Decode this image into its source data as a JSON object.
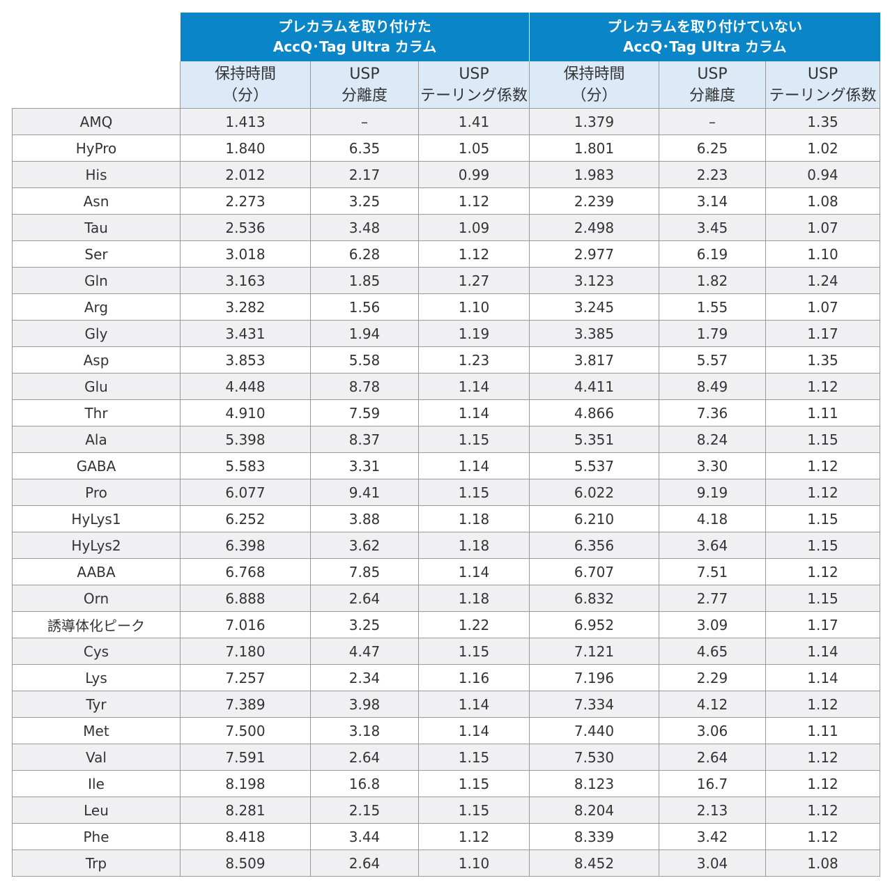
{
  "groups": [
    "プレカラムを取り付けた\nAccQ･Tag Ultra カラム",
    "プレカラムを取り付けていない\nAccQ･Tag Ultra カラム"
  ],
  "subheaders": [
    "保持時間\n（分）",
    "USP\n分離度",
    "USP\nテーリング係数"
  ],
  "rows": [
    [
      "AMQ",
      "1.413",
      "–",
      "1.41",
      "1.379",
      "–",
      "1.35"
    ],
    [
      "HyPro",
      "1.840",
      "6.35",
      "1.05",
      "1.801",
      "6.25",
      "1.02"
    ],
    [
      "His",
      "2.012",
      "2.17",
      "0.99",
      "1.983",
      "2.23",
      "0.94"
    ],
    [
      "Asn",
      "2.273",
      "3.25",
      "1.12",
      "2.239",
      "3.14",
      "1.08"
    ],
    [
      "Tau",
      "2.536",
      "3.48",
      "1.09",
      "2.498",
      "3.45",
      "1.07"
    ],
    [
      "Ser",
      "3.018",
      "6.28",
      "1.12",
      "2.977",
      "6.19",
      "1.10"
    ],
    [
      "Gln",
      "3.163",
      "1.85",
      "1.27",
      "3.123",
      "1.82",
      "1.24"
    ],
    [
      "Arg",
      "3.282",
      "1.56",
      "1.10",
      "3.245",
      "1.55",
      "1.07"
    ],
    [
      "Gly",
      "3.431",
      "1.94",
      "1.19",
      "3.385",
      "1.79",
      "1.17"
    ],
    [
      "Asp",
      "3.853",
      "5.58",
      "1.23",
      "3.817",
      "5.57",
      "1.35"
    ],
    [
      "Glu",
      "4.448",
      "8.78",
      "1.14",
      "4.411",
      "8.49",
      "1.12"
    ],
    [
      "Thr",
      "4.910",
      "7.59",
      "1.14",
      "4.866",
      "7.36",
      "1.11"
    ],
    [
      "Ala",
      "5.398",
      "8.37",
      "1.15",
      "5.351",
      "8.24",
      "1.15"
    ],
    [
      "GABA",
      "5.583",
      "3.31",
      "1.14",
      "5.537",
      "3.30",
      "1.12"
    ],
    [
      "Pro",
      "6.077",
      "9.41",
      "1.15",
      "6.022",
      "9.19",
      "1.12"
    ],
    [
      "HyLys1",
      "6.252",
      "3.88",
      "1.18",
      "6.210",
      "4.18",
      "1.15"
    ],
    [
      "HyLys2",
      "6.398",
      "3.62",
      "1.18",
      "6.356",
      "3.64",
      "1.15"
    ],
    [
      "AABA",
      "6.768",
      "7.85",
      "1.14",
      "6.707",
      "7.51",
      "1.12"
    ],
    [
      "Orn",
      "6.888",
      "2.64",
      "1.18",
      "6.832",
      "2.77",
      "1.15"
    ],
    [
      "誘導体化ピーク",
      "7.016",
      "3.25",
      "1.22",
      "6.952",
      "3.09",
      "1.17"
    ],
    [
      "Cys",
      "7.180",
      "4.47",
      "1.15",
      "7.121",
      "4.65",
      "1.14"
    ],
    [
      "Lys",
      "7.257",
      "2.34",
      "1.16",
      "7.196",
      "2.29",
      "1.14"
    ],
    [
      "Tyr",
      "7.389",
      "3.98",
      "1.14",
      "7.334",
      "4.12",
      "1.12"
    ],
    [
      "Met",
      "7.500",
      "3.18",
      "1.14",
      "7.440",
      "3.06",
      "1.11"
    ],
    [
      "Val",
      "7.591",
      "2.64",
      "1.15",
      "7.530",
      "2.64",
      "1.12"
    ],
    [
      "Ile",
      "8.198",
      "16.8",
      "1.15",
      "8.123",
      "16.7",
      "1.12"
    ],
    [
      "Leu",
      "8.281",
      "2.15",
      "1.15",
      "8.204",
      "2.13",
      "1.12"
    ],
    [
      "Phe",
      "8.418",
      "3.44",
      "1.12",
      "8.339",
      "3.42",
      "1.12"
    ],
    [
      "Trp",
      "8.509",
      "2.64",
      "1.10",
      "8.452",
      "3.04",
      "1.08"
    ]
  ]
}
